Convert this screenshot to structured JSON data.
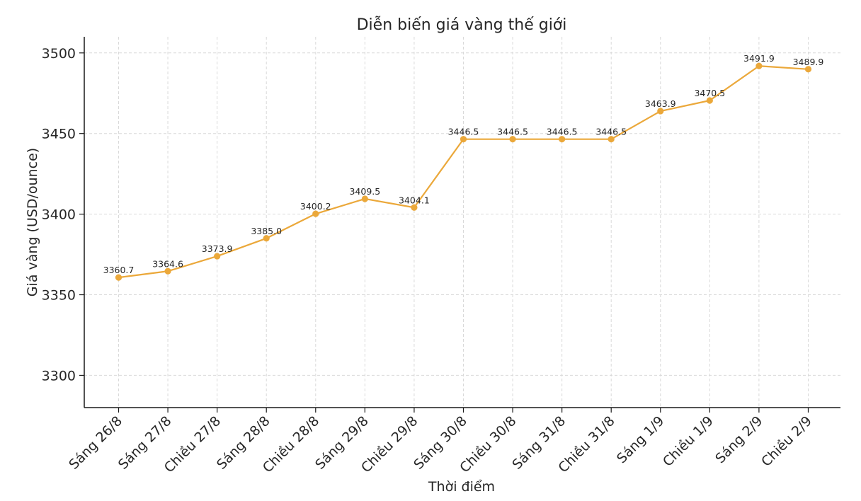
{
  "chart_data": {
    "type": "line",
    "title": "Diễn biến giá vàng thế giới",
    "xlabel": "Thời điểm",
    "ylabel": "Giá vàng (USD/ounce)",
    "categories": [
      "Sáng 26/8",
      "Sáng 27/8",
      "Chiều 27/8",
      "Sáng 28/8",
      "Chiều 28/8",
      "Sáng 29/8",
      "Chiều 29/8",
      "Sáng 30/8",
      "Chiều 30/8",
      "Sáng 31/8",
      "Chiều 31/8",
      "Sáng 1/9",
      "Chiều 1/9",
      "Sáng 2/9",
      "Chiều 2/9"
    ],
    "series": [
      {
        "values": [
          3360.7,
          3364.6,
          3373.9,
          3385.0,
          3400.2,
          3409.5,
          3404.1,
          3446.5,
          3446.5,
          3446.5,
          3446.5,
          3463.9,
          3470.5,
          3491.9,
          3489.9
        ],
        "value_labels": [
          "3360.7",
          "3364.6",
          "3373.9",
          "3385.0",
          "3400.2",
          "3409.5",
          "3404.1",
          "3446.5",
          "3446.5",
          "3446.5",
          "3446.5",
          "3463.9",
          "3470.5",
          "3491.9",
          "3489.9"
        ],
        "color": "#EBA83A"
      }
    ],
    "yticks": [
      3300,
      3350,
      3400,
      3450,
      3500
    ],
    "ylim": [
      3280,
      3510
    ],
    "grid": true,
    "legend": "none"
  }
}
